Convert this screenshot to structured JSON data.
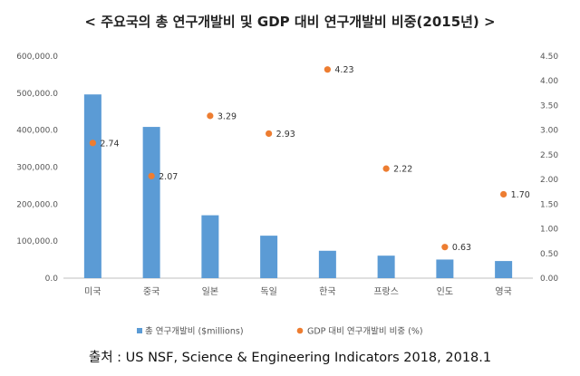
{
  "chart_data": {
    "type": "bar",
    "title": "< 주요국의 총 연구개발비 및 GDP 대비 연구개발비 비중(2015년) >",
    "categories": [
      "미국",
      "중국",
      "일본",
      "독일",
      "한국",
      "프랑스",
      "인도",
      "영국"
    ],
    "series": [
      {
        "name": "총 연구개발비 ($millions)",
        "type": "bar",
        "axis": "left",
        "color": "#5b9bd5",
        "values": [
          496600,
          408800,
          170000,
          114800,
          74000,
          60800,
          50300,
          46300
        ]
      },
      {
        "name": "GDP 대비 연구개발비 비중 (%)",
        "type": "scatter",
        "axis": "right",
        "color": "#ed7d31",
        "values": [
          2.74,
          2.07,
          3.29,
          2.93,
          4.23,
          2.22,
          0.63,
          1.7
        ],
        "labels": [
          "2.74",
          "2.07",
          "3.29",
          "2.93",
          "4.23",
          "2.22",
          "0.63",
          "1.70"
        ]
      }
    ],
    "y_left": {
      "min": 0,
      "max": 600000,
      "step": 100000,
      "ticks": [
        "0.0",
        "100,000.0",
        "200,000.0",
        "300,000.0",
        "400,000.0",
        "500,000.0",
        "600,000.0"
      ]
    },
    "y_right": {
      "min": 0,
      "max": 4.5,
      "step": 0.5,
      "ticks": [
        "0.00",
        "0.50",
        "1.00",
        "1.50",
        "2.00",
        "2.50",
        "3.00",
        "3.50",
        "4.00",
        "4.50"
      ]
    },
    "grid": false,
    "legend": "bottom"
  },
  "source": "출처 : US NSF, Science & Engineering Indicators 2018, 2018.1"
}
